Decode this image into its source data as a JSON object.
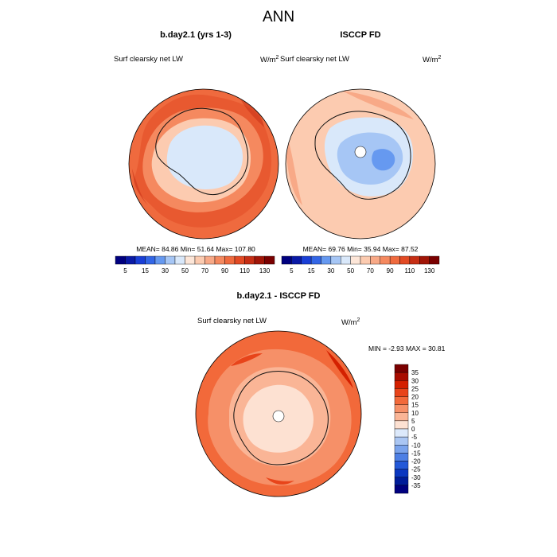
{
  "page": {
    "title": "ANN"
  },
  "colors": {
    "coast": "#111111",
    "pole_hole": "#ffffff",
    "map_edge": "#000000"
  },
  "panels": [
    {
      "id": "model",
      "heading": "b.day2.1 (yrs 1-3)",
      "left_label": "Surf clearsky net LW",
      "units": "W/m",
      "units_sup": "2",
      "stats_text": "MEAN=  84.86  Min=  51.64  Max= 107.80",
      "mean": 84.86,
      "min": 51.64,
      "max": 107.8
    },
    {
      "id": "obs",
      "heading": "ISCCP FD",
      "left_label": "Surf clearsky net LW",
      "units": "W/m",
      "units_sup": "2",
      "stats_text": "MEAN=  69.76  Min=  35.94  Max=  87.52",
      "mean": 69.76,
      "min": 35.94,
      "max": 87.52
    }
  ],
  "diff_panel": {
    "heading": "b.day2.1 - ISCCP FD",
    "left_label": "Surf clearsky net LW",
    "units": "W/m",
    "units_sup": "2",
    "stats_text": "MIN =  -2.93 MAX =  30.81",
    "min": -2.93,
    "max": 30.81
  },
  "chart_data": [
    {
      "type": "heatmap",
      "title": "b.day2.1 (yrs 1-3)",
      "subtitle": "Surf clearsky net LW",
      "units": "W/m2",
      "projection": "south polar stereographic",
      "contour_levels": [
        5,
        15,
        30,
        50,
        70,
        90,
        110,
        130
      ],
      "mean": 84.86,
      "min": 51.64,
      "max": 107.8
    },
    {
      "type": "heatmap",
      "title": "ISCCP FD",
      "subtitle": "Surf clearsky net LW",
      "units": "W/m2",
      "projection": "south polar stereographic",
      "contour_levels": [
        5,
        15,
        30,
        50,
        70,
        90,
        110,
        130
      ],
      "mean": 69.76,
      "min": 35.94,
      "max": 87.52
    },
    {
      "type": "heatmap",
      "title": "b.day2.1 - ISCCP FD",
      "subtitle": "Surf clearsky net LW",
      "units": "W/m2",
      "projection": "south polar stereographic",
      "contour_levels": [
        35,
        30,
        25,
        20,
        15,
        10,
        5,
        0,
        -5,
        -10,
        -15,
        -20,
        -25,
        -30,
        -35
      ],
      "min": -2.93,
      "max": 30.81
    }
  ],
  "colorbar_abs": {
    "colors": [
      "#00007f",
      "#0a1aa6",
      "#1a3fd6",
      "#3366e6",
      "#6699f0",
      "#a6c6f5",
      "#d9e8fa",
      "#fde6d8",
      "#fccbb0",
      "#f8a987",
      "#f5895f",
      "#ef6a3e",
      "#e24a24",
      "#c62e14",
      "#a11507",
      "#7a0000"
    ],
    "labels": [
      "5",
      "15",
      "30",
      "50",
      "70",
      "90",
      "110",
      "130"
    ]
  },
  "colorbar_diff": {
    "colors": [
      "#7a0000",
      "#a80c00",
      "#d42000",
      "#e8441a",
      "#f2693a",
      "#f69068",
      "#fab596",
      "#fde1d2",
      "#dce9fb",
      "#aac6f3",
      "#7aa3ec",
      "#4d7fe4",
      "#2359d8",
      "#0b37c0",
      "#001c99",
      "#00007f"
    ],
    "labels": [
      "35",
      "30",
      "25",
      "20",
      "15",
      "10",
      "5",
      "0",
      "-5",
      "-10",
      "-15",
      "-20",
      "-25",
      "-30",
      "-35"
    ]
  }
}
